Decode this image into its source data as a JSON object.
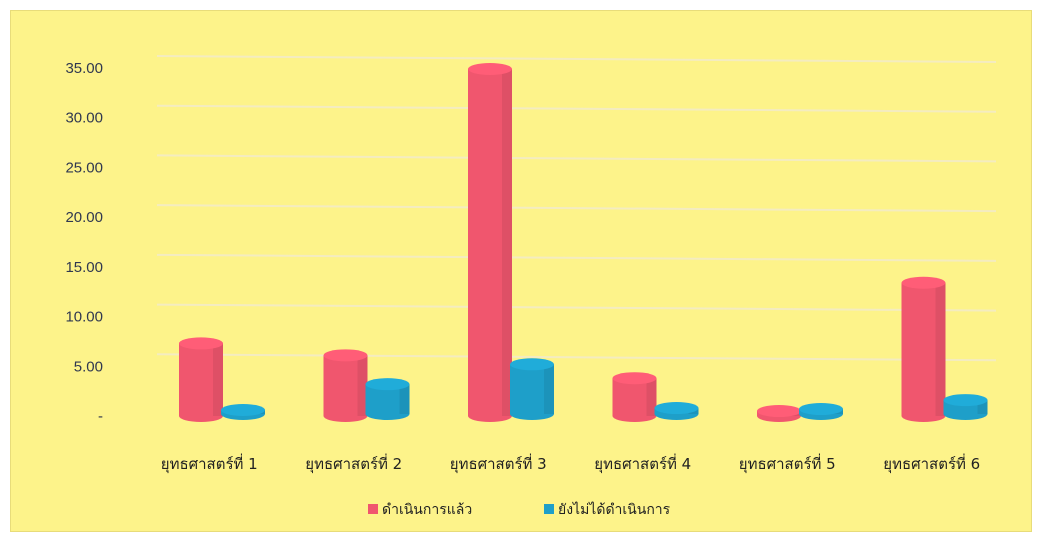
{
  "chart_data": {
    "type": "bar",
    "style": "3d-cylinder",
    "categories": [
      "ยุทธศาสตร์ที่ 1",
      "ยุทธศาสตร์ที่ 2",
      "ยุทธศาสตร์ที่ 3",
      "ยุทธศาสตร์ที่ 4",
      "ยุทธศาสตร์ที่ 5",
      "ยุทธศาสตร์ที่ 6"
    ],
    "series": [
      {
        "name": "ดำเนินการแล้ว",
        "color": "#f0566e",
        "values": [
          7.3,
          6.1,
          34.9,
          3.8,
          0.5,
          13.4
        ]
      },
      {
        "name": "ยังไม่ได้ดำเนินการ",
        "color": "#1e9fc9",
        "values": [
          0.3,
          3.0,
          5.0,
          0.6,
          0.5,
          1.4
        ]
      }
    ],
    "y_ticks": [
      "-",
      "5.00",
      "10.00",
      "15.00",
      "20.00",
      "25.00",
      "30.00",
      "35.00"
    ],
    "ylim": [
      0,
      35
    ],
    "grid": true,
    "legend_position": "bottom",
    "background": "#fdf38a",
    "title": "",
    "xlabel": "",
    "ylabel": ""
  }
}
